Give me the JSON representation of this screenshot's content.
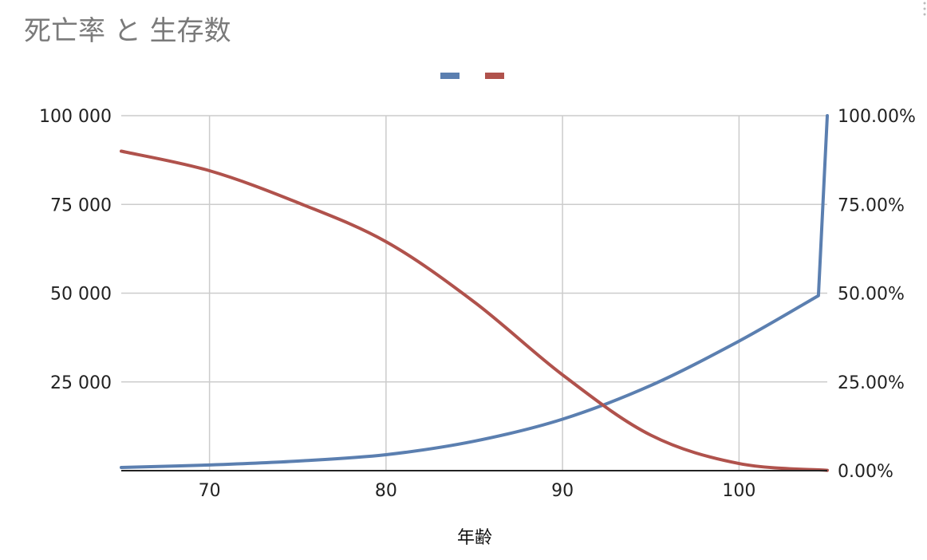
{
  "chart_data": {
    "type": "line",
    "title": "死亡率 と 生存数",
    "xlabel": "年齢",
    "ylabel_left": "",
    "ylabel_right": "",
    "xlim": [
      65,
      105
    ],
    "x_ticks": [
      70,
      80,
      90,
      100
    ],
    "x_tick_labels": [
      "70",
      "80",
      "90",
      "100"
    ],
    "left_axis": {
      "range": [
        0,
        100000
      ],
      "ticks": [
        25000,
        50000,
        75000,
        100000
      ],
      "tick_labels": [
        "25 000",
        "50 000",
        "75 000",
        "100 000"
      ]
    },
    "right_axis": {
      "range": [
        0,
        1
      ],
      "ticks": [
        0,
        0.25,
        0.5,
        0.75,
        1.0
      ],
      "tick_labels": [
        "0.00%",
        "25.00%",
        "50.00%",
        "75.00%",
        "100.00%"
      ]
    },
    "grid": true,
    "legend_position": "top",
    "series": [
      {
        "axis": "right",
        "color": "#5b7fb0",
        "x": [
          65,
          70,
          75,
          80,
          85,
          90,
          95,
          100,
          104.5,
          105
        ],
        "values": [
          0.009,
          0.016,
          0.027,
          0.045,
          0.083,
          0.145,
          0.24,
          0.365,
          0.493,
          1.0
        ]
      },
      {
        "axis": "left",
        "color": "#b0524c",
        "x": [
          65,
          70,
          75,
          80,
          85,
          90,
          95,
          100,
          105
        ],
        "values": [
          90000,
          84500,
          75500,
          64500,
          47500,
          27000,
          10000,
          2000,
          100
        ]
      }
    ]
  }
}
